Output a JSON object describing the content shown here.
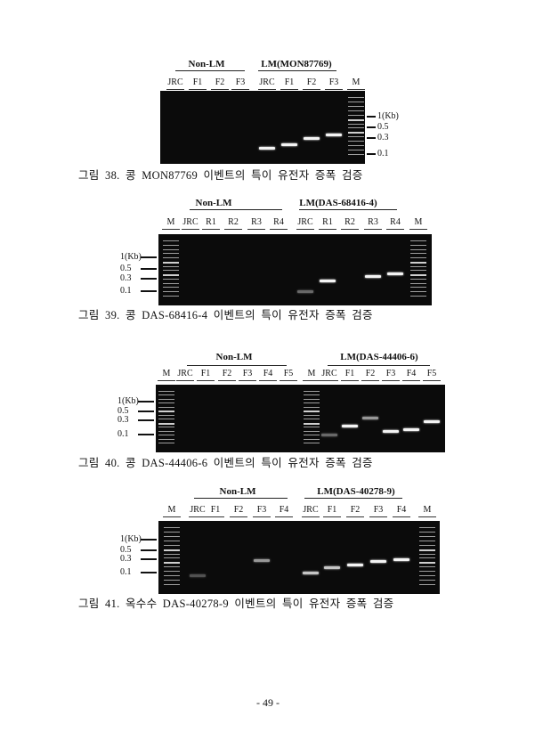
{
  "figures": [
    {
      "caption": "그림 38. 콩 MON87769 이벤트의 특이 유전자 증폭 검증",
      "groups": [
        "Non-LM",
        "LM(MON87769)"
      ],
      "ticks": [
        "1(Kb)",
        "0.5",
        "0.3",
        "0.1"
      ],
      "lanes": [
        {
          "label": "JRC",
          "bands": []
        },
        {
          "label": "F1",
          "bands": []
        },
        {
          "label": "F2",
          "bands": []
        },
        {
          "label": "F3",
          "bands": []
        },
        {
          "label": "JRC",
          "bands": [
            {
              "size_kb": 0.15,
              "intensity": 1
            }
          ]
        },
        {
          "label": "F1",
          "bands": [
            {
              "size_kb": 0.2,
              "intensity": 1
            }
          ]
        },
        {
          "label": "F2",
          "bands": [
            {
              "size_kb": 0.3,
              "intensity": 1
            }
          ]
        },
        {
          "label": "F3",
          "bands": [
            {
              "size_kb": 0.35,
              "intensity": 1
            }
          ]
        },
        {
          "label": "M",
          "marker": true,
          "bands": []
        }
      ]
    },
    {
      "caption": "그림 39. 콩 DAS-68416-4 이벤트의 특이 유전자 증폭 검증",
      "groups": [
        "Non-LM",
        "LM(DAS-68416-4)"
      ],
      "ticks": [
        "1(Kb)",
        "0.5",
        "0.3",
        "0.1"
      ],
      "lanes": [
        {
          "label": "M",
          "marker": true,
          "bands": []
        },
        {
          "label": "JRC",
          "bands": []
        },
        {
          "label": "R1",
          "bands": []
        },
        {
          "label": "R2",
          "bands": []
        },
        {
          "label": "R3",
          "bands": []
        },
        {
          "label": "R4",
          "bands": []
        },
        {
          "label": "JRC",
          "bands": [
            {
              "size_kb": 0.1,
              "intensity": 0.4
            }
          ]
        },
        {
          "label": "R1",
          "bands": [
            {
              "size_kb": 0.25,
              "intensity": 1
            }
          ]
        },
        {
          "label": "R2",
          "bands": []
        },
        {
          "label": "R3",
          "bands": [
            {
              "size_kb": 0.35,
              "intensity": 1
            }
          ]
        },
        {
          "label": "R4",
          "bands": [
            {
              "size_kb": 0.4,
              "intensity": 1
            }
          ]
        },
        {
          "label": "M",
          "marker": true,
          "bands": []
        }
      ]
    },
    {
      "caption": "그림 40. 콩 DAS-44406-6 이벤트의 특이 유전자 증폭 검증",
      "groups": [
        "Non-LM",
        "LM(DAS-44406-6)"
      ],
      "ticks": [
        "1(Kb)",
        "0.5",
        "0.3",
        "0.1"
      ],
      "lanes": [
        {
          "label": "M",
          "marker": true,
          "bands": []
        },
        {
          "label": "JRC",
          "bands": []
        },
        {
          "label": "F1",
          "bands": []
        },
        {
          "label": "F2",
          "bands": []
        },
        {
          "label": "F3",
          "bands": []
        },
        {
          "label": "F4",
          "bands": []
        },
        {
          "label": "F5",
          "bands": []
        },
        {
          "label": "M",
          "marker": true,
          "bands": []
        },
        {
          "label": "JRC",
          "bands": [
            {
              "size_kb": 0.1,
              "intensity": 0.4
            }
          ]
        },
        {
          "label": "F1",
          "bands": [
            {
              "size_kb": 0.2,
              "intensity": 1
            }
          ]
        },
        {
          "label": "F2",
          "bands": [
            {
              "size_kb": 0.35,
              "intensity": 0.6
            }
          ]
        },
        {
          "label": "F3",
          "bands": [
            {
              "size_kb": 0.13,
              "intensity": 1
            }
          ]
        },
        {
          "label": "F4",
          "bands": [
            {
              "size_kb": 0.15,
              "intensity": 1
            }
          ]
        },
        {
          "label": "F5",
          "bands": [
            {
              "size_kb": 0.28,
              "intensity": 1
            }
          ]
        }
      ]
    },
    {
      "caption": "그림 41. 옥수수 DAS-40278-9 이벤트의 특이 유전자 증폭 검증",
      "groups": [
        "Non-LM",
        "LM(DAS-40278-9)"
      ],
      "ticks": [
        "1(Kb)",
        "0.5",
        "0.3",
        "0.1"
      ],
      "lanes": [
        {
          "label": "M",
          "marker": true,
          "bands": []
        },
        {
          "label": "JRC",
          "bands": [
            {
              "size_kb": 0.08,
              "intensity": 0.3
            }
          ]
        },
        {
          "label": "F1",
          "bands": []
        },
        {
          "label": "F2",
          "bands": []
        },
        {
          "label": "F3",
          "bands": [
            {
              "size_kb": 0.28,
              "intensity": 0.6
            }
          ]
        },
        {
          "label": "F4",
          "bands": []
        },
        {
          "label": "JRC",
          "bands": [
            {
              "size_kb": 0.1,
              "intensity": 0.8
            }
          ]
        },
        {
          "label": "F1",
          "bands": [
            {
              "size_kb": 0.15,
              "intensity": 0.8
            }
          ]
        },
        {
          "label": "F2",
          "bands": [
            {
              "size_kb": 0.2,
              "intensity": 1
            }
          ]
        },
        {
          "label": "F3",
          "bands": [
            {
              "size_kb": 0.25,
              "intensity": 1
            }
          ]
        },
        {
          "label": "F4",
          "bands": [
            {
              "size_kb": 0.3,
              "intensity": 1
            }
          ]
        },
        {
          "label": "M",
          "marker": true,
          "bands": []
        }
      ]
    }
  ],
  "page_number": "- 49 -"
}
